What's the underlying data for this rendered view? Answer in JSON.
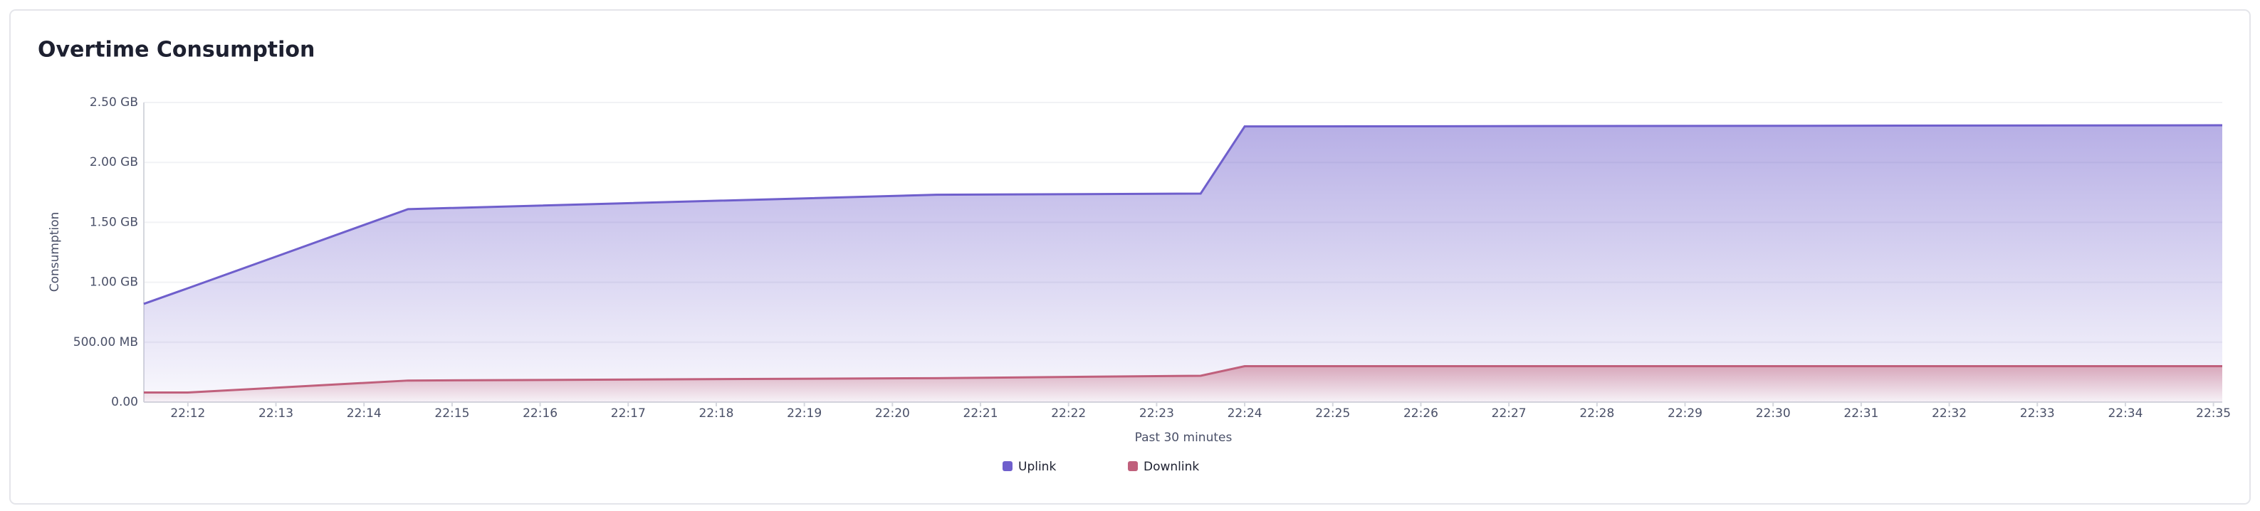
{
  "chart_data": {
    "type": "area",
    "title": "Overtime Consumption",
    "ylabel": "Consumption",
    "xlabel": "Past 30 minutes",
    "x": [
      1331.5,
      1332,
      1334.5,
      1340.5,
      1343.5,
      1344,
      1355.1
    ],
    "series": [
      {
        "name": "Uplink",
        "color": "#6f5fcc",
        "values": [
          0.82,
          0.95,
          1.61,
          1.73,
          1.74,
          2.3,
          2.31
        ]
      },
      {
        "name": "Downlink",
        "color": "#c0607c",
        "values": [
          0.08,
          0.08,
          0.18,
          0.2,
          0.22,
          0.3,
          0.3
        ]
      }
    ],
    "xlim": [
      1331.5,
      1355.1
    ],
    "xticks": [
      {
        "value": 1332,
        "label": "22:12"
      },
      {
        "value": 1333,
        "label": "22:13"
      },
      {
        "value": 1334,
        "label": "22:14"
      },
      {
        "value": 1335,
        "label": "22:15"
      },
      {
        "value": 1336,
        "label": "22:16"
      },
      {
        "value": 1337,
        "label": "22:17"
      },
      {
        "value": 1338,
        "label": "22:18"
      },
      {
        "value": 1339,
        "label": "22:19"
      },
      {
        "value": 1340,
        "label": "22:20"
      },
      {
        "value": 1341,
        "label": "22:21"
      },
      {
        "value": 1342,
        "label": "22:22"
      },
      {
        "value": 1343,
        "label": "22:23"
      },
      {
        "value": 1344,
        "label": "22:24"
      },
      {
        "value": 1345,
        "label": "22:25"
      },
      {
        "value": 1346,
        "label": "22:26"
      },
      {
        "value": 1347,
        "label": "22:27"
      },
      {
        "value": 1348,
        "label": "22:28"
      },
      {
        "value": 1349,
        "label": "22:29"
      },
      {
        "value": 1350,
        "label": "22:30"
      },
      {
        "value": 1351,
        "label": "22:31"
      },
      {
        "value": 1352,
        "label": "22:32"
      },
      {
        "value": 1353,
        "label": "22:33"
      },
      {
        "value": 1354,
        "label": "22:34"
      },
      {
        "value": 1355,
        "label": "22:35"
      }
    ],
    "ylim": [
      0,
      2.5
    ],
    "yticks": [
      {
        "value": 0,
        "label": "0.00"
      },
      {
        "value": 0.5,
        "label": "500.00 MB"
      },
      {
        "value": 1,
        "label": "1.00 GB"
      },
      {
        "value": 1.5,
        "label": "1.50 GB"
      },
      {
        "value": 2,
        "label": "2.00 GB"
      },
      {
        "value": 2.5,
        "label": "2.50 GB"
      }
    ],
    "grid": true,
    "legend": "bottom"
  }
}
